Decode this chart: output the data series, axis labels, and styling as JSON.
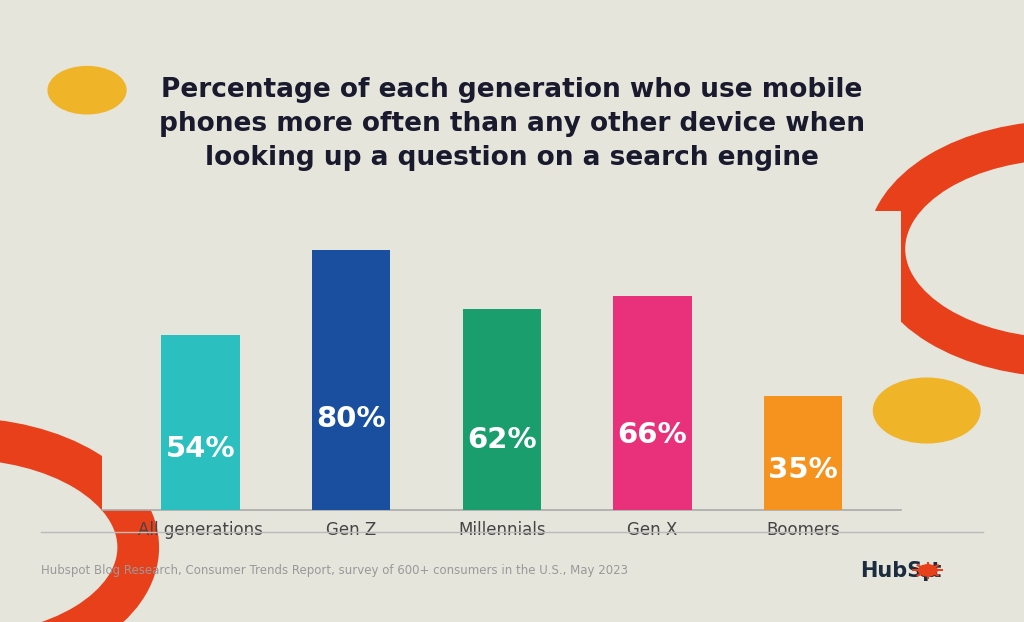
{
  "categories": [
    "All generations",
    "Gen Z",
    "Millennials",
    "Gen X",
    "Boomers"
  ],
  "values": [
    54,
    80,
    62,
    66,
    35
  ],
  "bar_colors": [
    "#2bbfbf",
    "#1a4fa0",
    "#1a9e6e",
    "#e8317a",
    "#f5931e"
  ],
  "title": "Percentage of each generation who use mobile\nphones more often than any other device when\nlooking up a question on a search engine",
  "background_color": "#e5e5dc",
  "bar_label_color": "#ffffff",
  "bar_label_fontsize": 21,
  "title_fontsize": 19,
  "xlabel_fontsize": 12,
  "footer_text": "Hubspot Blog Research, Consumer Trends Report, survey of 600+ consumers in the U.S., May 2023",
  "footer_color": "#999999",
  "ylim": [
    0,
    92
  ],
  "decoration_orange": "#e8401a",
  "decoration_yellow": "#f0b429",
  "hubspot_dark": "#1b2c3e",
  "hubspot_orange": "#e8401a",
  "title_color": "#1a1a2e"
}
